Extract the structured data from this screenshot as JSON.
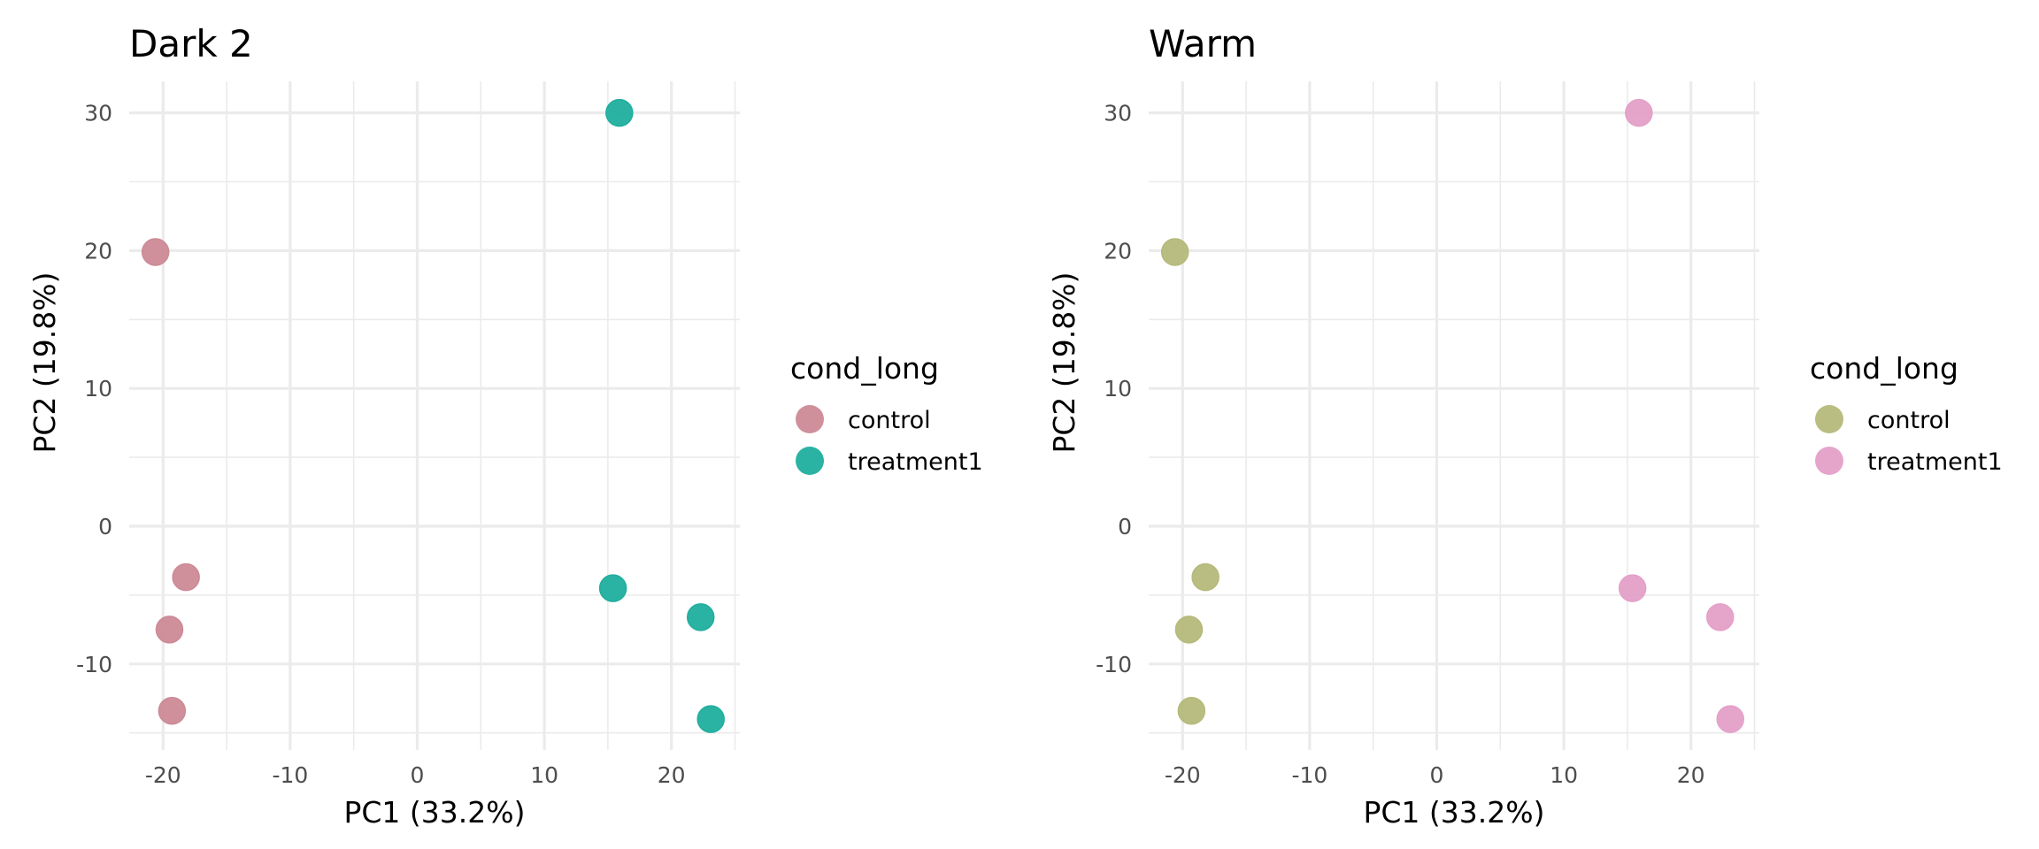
{
  "chart_data": [
    {
      "type": "scatter",
      "title": "Dark 2",
      "xlabel": "PC1 (33.2%)",
      "ylabel": "PC2 (19.8%)",
      "xlim": [
        -22.5,
        25.5
      ],
      "ylim": [
        -15.5,
        32.5
      ],
      "xticks": [
        -20,
        -10,
        0,
        10,
        20
      ],
      "yticks": [
        -10,
        0,
        10,
        20,
        30
      ],
      "xtick_labels": [
        "-20",
        "-10",
        "0",
        "10",
        "20"
      ],
      "ytick_labels": [
        "-10",
        "0",
        "10",
        "20",
        "30"
      ],
      "grid": true,
      "legend": {
        "title": "cond_long",
        "position": "right"
      },
      "series": [
        {
          "name": "control",
          "color": "#cc8a96",
          "x": [
            -20.6,
            -18.2,
            -19.5,
            -19.3
          ],
          "y": [
            19.9,
            -3.7,
            -7.5,
            -13.4
          ]
        },
        {
          "name": "treatment1",
          "color": "#1fae9e",
          "x": [
            15.9,
            15.4,
            22.3,
            23.1
          ],
          "y": [
            30.0,
            -4.5,
            -6.6,
            -14.0
          ]
        }
      ]
    },
    {
      "type": "scatter",
      "title": "Warm",
      "xlabel": "PC1 (33.2%)",
      "ylabel": "PC2 (19.8%)",
      "xlim": [
        -22.5,
        25.5
      ],
      "ylim": [
        -15.5,
        32.5
      ],
      "xticks": [
        -20,
        -10,
        0,
        10,
        20
      ],
      "yticks": [
        -10,
        0,
        10,
        20,
        30
      ],
      "xtick_labels": [
        "-20",
        "-10",
        "0",
        "10",
        "20"
      ],
      "ytick_labels": [
        "-10",
        "0",
        "10",
        "20",
        "30"
      ],
      "grid": true,
      "legend": {
        "title": "cond_long",
        "position": "right"
      },
      "series": [
        {
          "name": "control",
          "color": "#b5b97a",
          "x": [
            -20.6,
            -18.2,
            -19.5,
            -19.3
          ],
          "y": [
            19.9,
            -3.7,
            -7.5,
            -13.4
          ]
        },
        {
          "name": "treatment1",
          "color": "#e4a0c8",
          "x": [
            15.9,
            15.4,
            22.3,
            23.1
          ],
          "y": [
            30.0,
            -4.5,
            -6.6,
            -14.0
          ]
        }
      ]
    }
  ]
}
